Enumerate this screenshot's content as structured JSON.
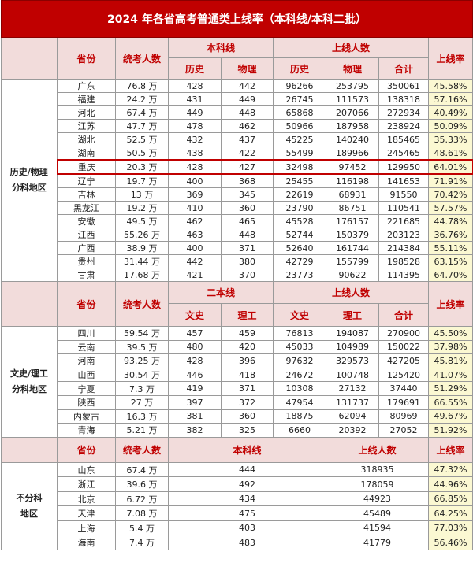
{
  "title": "2024 年各省高考普通类上线率（本科线/本科二批）",
  "colors": {
    "title_bg": "#c00000",
    "header_bg": "#f2dcdb",
    "header_text": "#c00000",
    "rate_bg": "#fbf8d2",
    "highlight_border": "#c00000"
  },
  "sections": [
    {
      "group": "历史/物理\n分科地区",
      "head": {
        "province": "省份",
        "count": "统考人数",
        "line": "本科线",
        "line_a": "历史",
        "line_b": "物理",
        "passed": "上线人数",
        "pass_a": "历史",
        "pass_b": "物理",
        "total": "合计",
        "rate": "上线率"
      },
      "highlight": "重庆",
      "rows": [
        [
          "广东",
          "76.8 万",
          "428",
          "442",
          "96266",
          "253795",
          "350061",
          "45.58%"
        ],
        [
          "福建",
          "24.2 万",
          "431",
          "449",
          "26745",
          "111573",
          "138318",
          "57.16%"
        ],
        [
          "河北",
          "67.4 万",
          "449",
          "448",
          "65868",
          "207066",
          "272934",
          "40.49%"
        ],
        [
          "江苏",
          "47.7 万",
          "478",
          "462",
          "50966",
          "187958",
          "238924",
          "50.09%"
        ],
        [
          "湖北",
          "52.5 万",
          "432",
          "437",
          "45225",
          "140240",
          "185465",
          "35.33%"
        ],
        [
          "湖南",
          "50.5 万",
          "438",
          "422",
          "55499",
          "189966",
          "245465",
          "48.61%"
        ],
        [
          "重庆",
          "20.3 万",
          "428",
          "427",
          "32498",
          "97452",
          "129950",
          "64.01%"
        ],
        [
          "辽宁",
          "19.7 万",
          "400",
          "368",
          "25455",
          "116198",
          "141653",
          "71.91%"
        ],
        [
          "吉林",
          "13 万",
          "369",
          "345",
          "22619",
          "68931",
          "91550",
          "70.42%"
        ],
        [
          "黑龙江",
          "19.2 万",
          "410",
          "360",
          "23790",
          "86751",
          "110541",
          "57.57%"
        ],
        [
          "安徽",
          "49.5 万",
          "462",
          "465",
          "45528",
          "176157",
          "221685",
          "44.78%"
        ],
        [
          "江西",
          "55.26 万",
          "463",
          "448",
          "52744",
          "150379",
          "203123",
          "36.76%"
        ],
        [
          "广西",
          "38.9 万",
          "400",
          "371",
          "52640",
          "161744",
          "214384",
          "55.11%"
        ],
        [
          "贵州",
          "31.44 万",
          "442",
          "380",
          "42729",
          "155799",
          "198528",
          "63.15%"
        ],
        [
          "甘肃",
          "17.68 万",
          "421",
          "370",
          "23773",
          "90622",
          "114395",
          "64.70%"
        ]
      ]
    },
    {
      "group": "文史/理工\n分科地区",
      "head": {
        "province": "省份",
        "count": "统考人数",
        "line": "二本线",
        "line_a": "文史",
        "line_b": "理工",
        "passed": "上线人数",
        "pass_a": "文史",
        "pass_b": "理工",
        "total": "合计",
        "rate": "上线率"
      },
      "rows": [
        [
          "四川",
          "59.54 万",
          "457",
          "459",
          "76813",
          "194087",
          "270900",
          "45.50%"
        ],
        [
          "云南",
          "39.5 万",
          "480",
          "420",
          "45033",
          "104989",
          "150022",
          "37.98%"
        ],
        [
          "河南",
          "93.25 万",
          "428",
          "396",
          "97632",
          "329573",
          "427205",
          "45.81%"
        ],
        [
          "山西",
          "30.54 万",
          "446",
          "418",
          "24672",
          "100748",
          "125420",
          "41.07%"
        ],
        [
          "宁夏",
          "7.3 万",
          "419",
          "371",
          "10308",
          "27132",
          "37440",
          "51.29%"
        ],
        [
          "陕西",
          "27 万",
          "397",
          "372",
          "47954",
          "131737",
          "179691",
          "66.55%"
        ],
        [
          "内蒙古",
          "16.3 万",
          "381",
          "360",
          "18875",
          "62094",
          "80969",
          "49.67%"
        ],
        [
          "青海",
          "5.21 万",
          "382",
          "325",
          "6660",
          "20392",
          "27052",
          "51.92%"
        ]
      ]
    },
    {
      "group": "不分科\n地区",
      "head": {
        "province": "省份",
        "count": "统考人数",
        "line": "本科线",
        "passed": "上线人数",
        "rate": "上线率"
      },
      "rows": [
        [
          "山东",
          "67.4 万",
          "444",
          "318935",
          "47.32%"
        ],
        [
          "浙江",
          "39.6 万",
          "492",
          "178059",
          "44.96%"
        ],
        [
          "北京",
          "6.72 万",
          "434",
          "44923",
          "66.85%"
        ],
        [
          "天津",
          "7.08 万",
          "475",
          "45489",
          "64.25%"
        ],
        [
          "上海",
          "5.4 万",
          "403",
          "41594",
          "77.03%"
        ],
        [
          "海南",
          "7.4 万",
          "483",
          "41779",
          "56.46%"
        ]
      ]
    }
  ]
}
